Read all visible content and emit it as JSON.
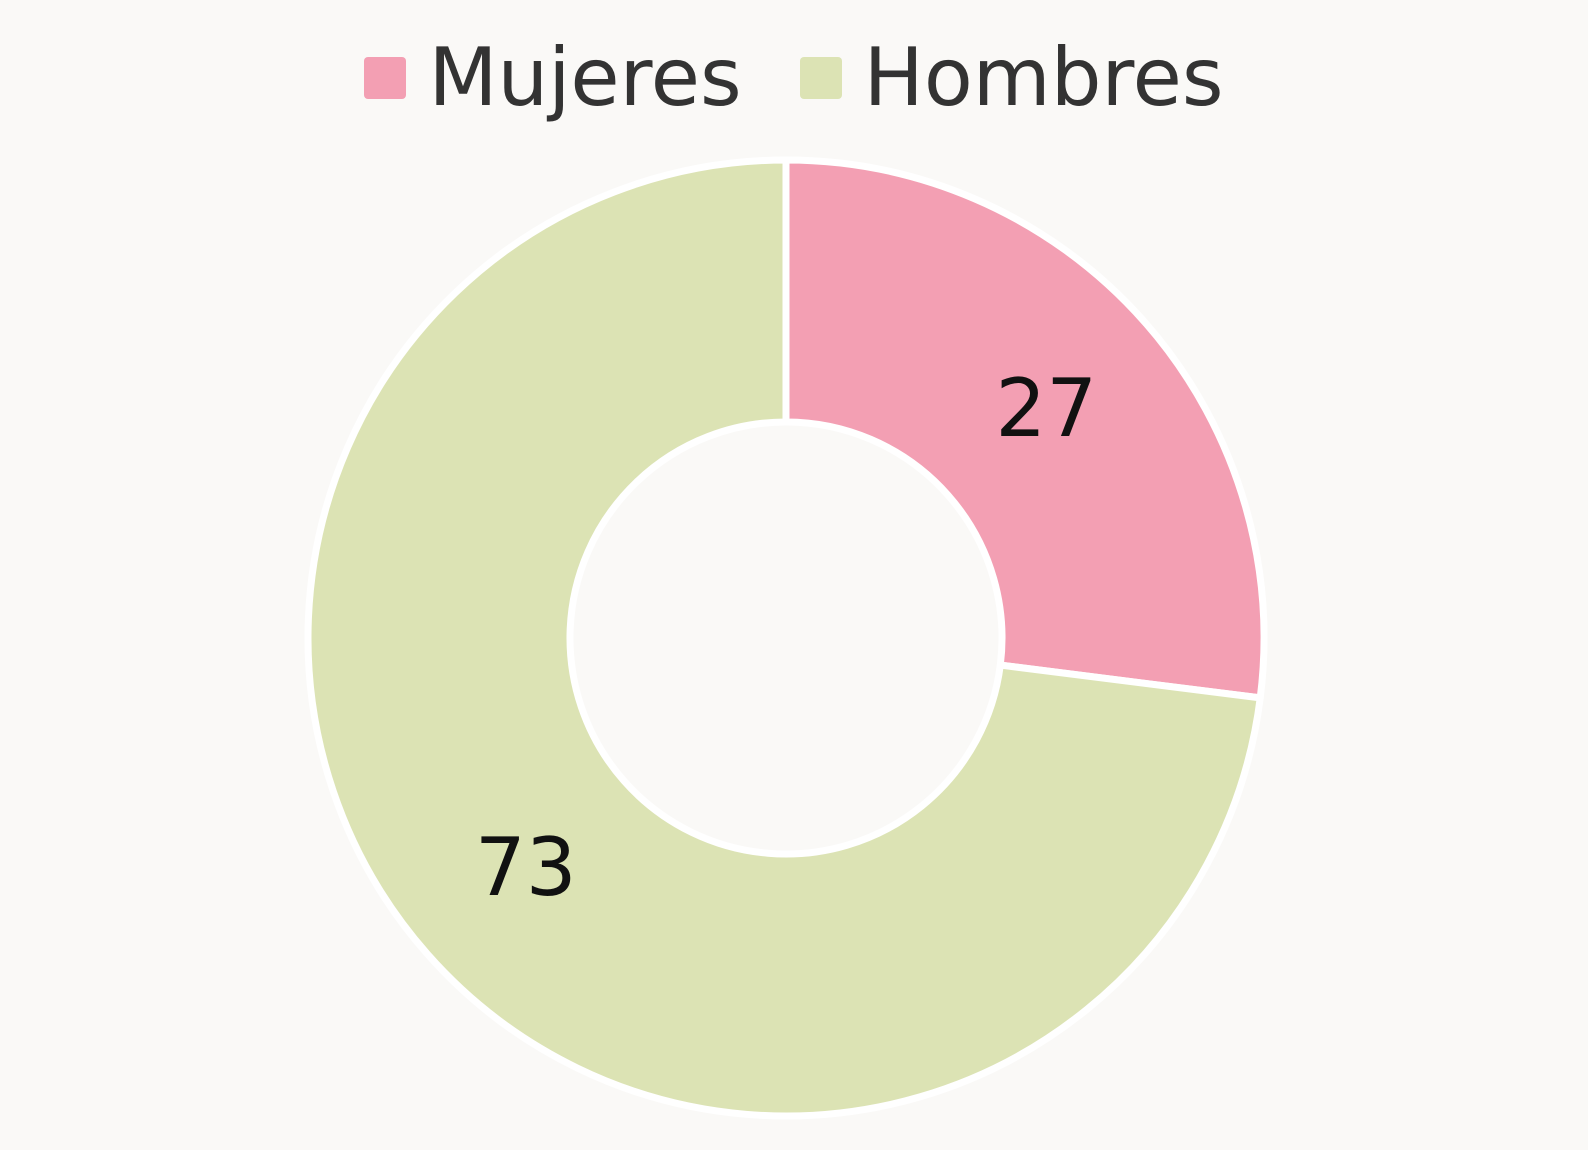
{
  "chart_data": {
    "type": "pie",
    "variant": "donut",
    "categories": [
      "Mujeres",
      "Hombres"
    ],
    "values": [
      27,
      73
    ],
    "colors": [
      "#f39fb3",
      "#dce3b4"
    ],
    "legend_position": "top",
    "title": "",
    "xlabel": "",
    "ylabel": ""
  },
  "legend": {
    "items": [
      {
        "label": "Mujeres",
        "color": "#f39fb3"
      },
      {
        "label": "Hombres",
        "color": "#dce3b4"
      }
    ]
  },
  "slices": [
    {
      "label": "27"
    },
    {
      "label": "73"
    }
  ]
}
